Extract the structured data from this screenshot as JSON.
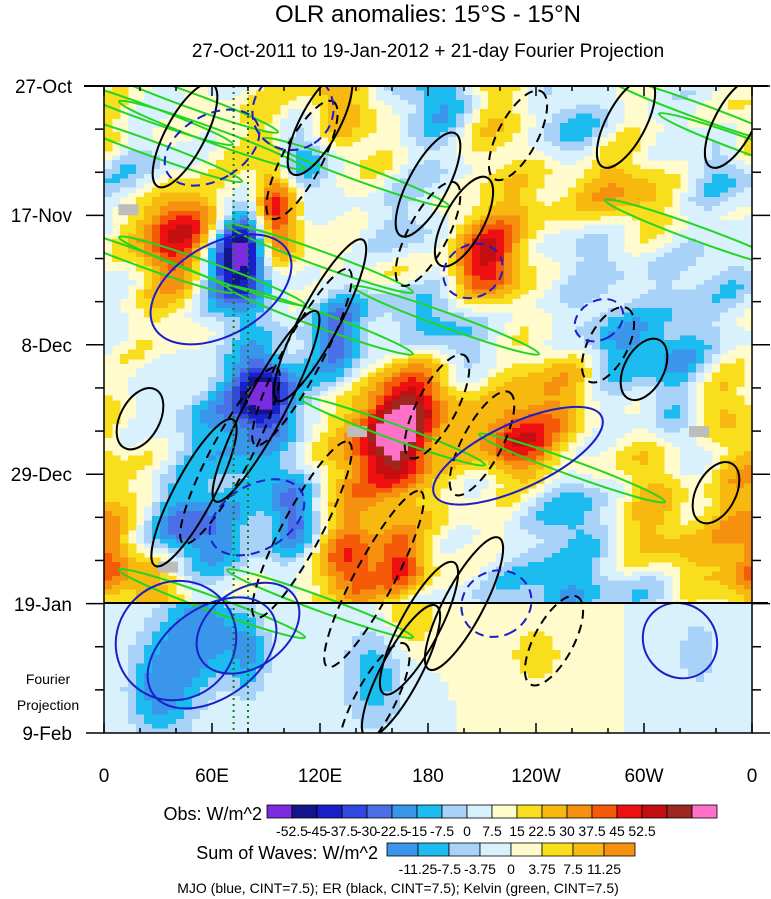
{
  "chart_data": {
    "type": "heatmap",
    "title": "OLR anomalies: 15°S - 15°N",
    "subtitle": "27-Oct-2011 to 19-Jan-2012 + 21-day Fourier Projection",
    "x_ticks": [
      "0",
      "60E",
      "120E",
      "180",
      "120W",
      "60W",
      "0"
    ],
    "y_ticks": [
      "27-Oct",
      "17-Nov",
      "8-Dec",
      "29-Dec",
      "19-Jan",
      "9-Feb"
    ],
    "projection_label": [
      "Fourier",
      "Projection"
    ],
    "xlim": [
      0,
      360
    ],
    "projection_boundary": "19-Jan",
    "obs_colorbar": {
      "label": "Obs: W/m^2",
      "levels": [
        "-52.5",
        "-45",
        "-37.5",
        "-30",
        "-22.5",
        "-15",
        "-7.5",
        "0",
        "7.5",
        "15",
        "22.5",
        "30",
        "37.5",
        "45",
        "52.5"
      ],
      "colors": [
        "#7b2be0",
        "#13148c",
        "#1a1fc9",
        "#3048e0",
        "#4a6fe6",
        "#3a96ea",
        "#1cbcf0",
        "#a8d2f7",
        "#d9f1fc",
        "#fffbcc",
        "#f9de1e",
        "#f7b810",
        "#f69110",
        "#f55a08",
        "#ee1010",
        "#c40e10",
        "#9e2820",
        "#ff70c8"
      ]
    },
    "waves_colorbar": {
      "label": "Sum of Waves: W/m^2",
      "levels": [
        "-11.25",
        "-7.5",
        "-3.75",
        "0",
        "3.75",
        "7.5",
        "11.25"
      ],
      "colors": [
        "#3a96ea",
        "#1cbcf0",
        "#a8d2f7",
        "#d9f1fc",
        "#fffbcc",
        "#f9de1e",
        "#f7b810",
        "#f69110"
      ]
    },
    "footer": "MJO (blue, CINT=7.5); ER (black, CINT=7.5); Kelvin (green, CINT=7.5)",
    "series": [
      {
        "name": "MJO",
        "color": "#1a1fc9"
      },
      {
        "name": "ER",
        "color": "#000000"
      },
      {
        "name": "Kelvin",
        "color": "#22d622"
      }
    ],
    "reference_lines_lon": [
      72,
      80
    ]
  }
}
